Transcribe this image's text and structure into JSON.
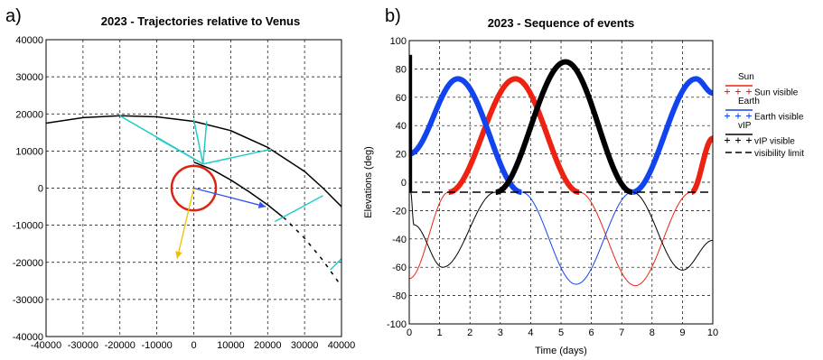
{
  "panel_a": {
    "letter": "a)",
    "chart_data": {
      "type": "line",
      "title": "2023 - Trajectories relative to Venus",
      "xlabel": "",
      "ylabel": "",
      "xlim": [
        -40000,
        40000
      ],
      "ylim": [
        -40000,
        40000
      ],
      "xticks": [
        -40000,
        -30000,
        -20000,
        -10000,
        0,
        10000,
        20000,
        30000,
        40000
      ],
      "yticks": [
        -40000,
        -30000,
        -20000,
        -10000,
        0,
        10000,
        20000,
        30000,
        40000
      ],
      "grid": true,
      "series": [
        {
          "style": "outer-trajectory",
          "color": "#000000",
          "x": [
            -40000,
            -30000,
            -20000,
            -10000,
            0,
            10000,
            20000,
            30000,
            35000,
            40000
          ],
          "y": [
            17500,
            19000,
            19500,
            19200,
            18000,
            15500,
            11000,
            4500,
            0,
            -5000
          ]
        },
        {
          "style": "inner-trajectory",
          "color": "#000000",
          "x": [
            0,
            5000,
            10000,
            15000,
            20000,
            25000,
            30000,
            35000,
            40000
          ],
          "y": [
            7000,
            5000,
            2200,
            -1000,
            -4500,
            -8500,
            -13500,
            -19500,
            -26500
          ]
        },
        {
          "style": "venus-circle",
          "color": "#dd2211",
          "center": [
            0,
            0
          ],
          "radius": 6000
        },
        {
          "style": "cyan-segments",
          "color": "#22cccc",
          "segments": [
            [
              [
                -20000,
                19500
              ],
              [
                2500,
                6500
              ]
            ],
            [
              [
                -10000,
                13500
              ],
              [
                2500,
                6500
              ]
            ],
            [
              [
                0,
                18500
              ],
              [
                2500,
                6500
              ]
            ],
            [
              [
                3500,
                18000
              ],
              [
                2500,
                6500
              ]
            ],
            [
              [
                2500,
                6500
              ],
              [
                21000,
                10500
              ]
            ],
            [
              [
                22000,
                -9000
              ],
              [
                35000,
                -2000
              ]
            ],
            [
              [
                37000,
                -22000
              ],
              [
                40000,
                -19000
              ]
            ]
          ]
        },
        {
          "style": "blue-arrow",
          "color": "#3355ee",
          "from": [
            0,
            0
          ],
          "to": [
            19500,
            -5000
          ]
        },
        {
          "style": "yellow-arrow",
          "color": "#f0c000",
          "from": [
            0,
            0
          ],
          "to": [
            -4500,
            -19000
          ]
        }
      ]
    }
  },
  "panel_b": {
    "letter": "b)",
    "chart_data": {
      "type": "line",
      "title": "2023 - Sequence of events",
      "xlabel": "Time (days)",
      "ylabel": "Elevations (deg)",
      "xlim": [
        0,
        10
      ],
      "ylim": [
        -100,
        100
      ],
      "xticks": [
        0,
        1,
        2,
        3,
        4,
        5,
        6,
        7,
        8,
        9,
        10
      ],
      "yticks": [
        -100,
        -80,
        -60,
        -40,
        -20,
        0,
        20,
        40,
        60,
        80,
        100
      ],
      "grid": true,
      "visibility_limit": -7,
      "legend_position": "right",
      "legend": [
        "Sun",
        "Sun visible",
        "Earth",
        "Earth visible",
        "vIP",
        "vIP visible",
        "visibility limit"
      ],
      "series": [
        {
          "name": "Sun",
          "color": "#ee2211",
          "x": [
            0,
            1.3,
            3.5,
            5.6,
            7.45,
            9.3,
            10
          ],
          "y": [
            -68,
            -7,
            73,
            -7,
            -73,
            -7,
            31
          ]
        },
        {
          "name": "Earth",
          "color": "#1144ee",
          "x": [
            0,
            1.6,
            3.7,
            5.5,
            7.35,
            9.45,
            10
          ],
          "y": [
            20,
            73,
            -7,
            -72,
            -7,
            73,
            63
          ]
        },
        {
          "name": "vIP",
          "color": "#000000",
          "x": [
            0.05,
            0.15,
            1.1,
            2.85,
            5.15,
            7.35,
            9.0,
            10
          ],
          "y": [
            -7,
            -30,
            -60,
            -7,
            85,
            -7,
            -62,
            -41
          ]
        }
      ]
    }
  }
}
